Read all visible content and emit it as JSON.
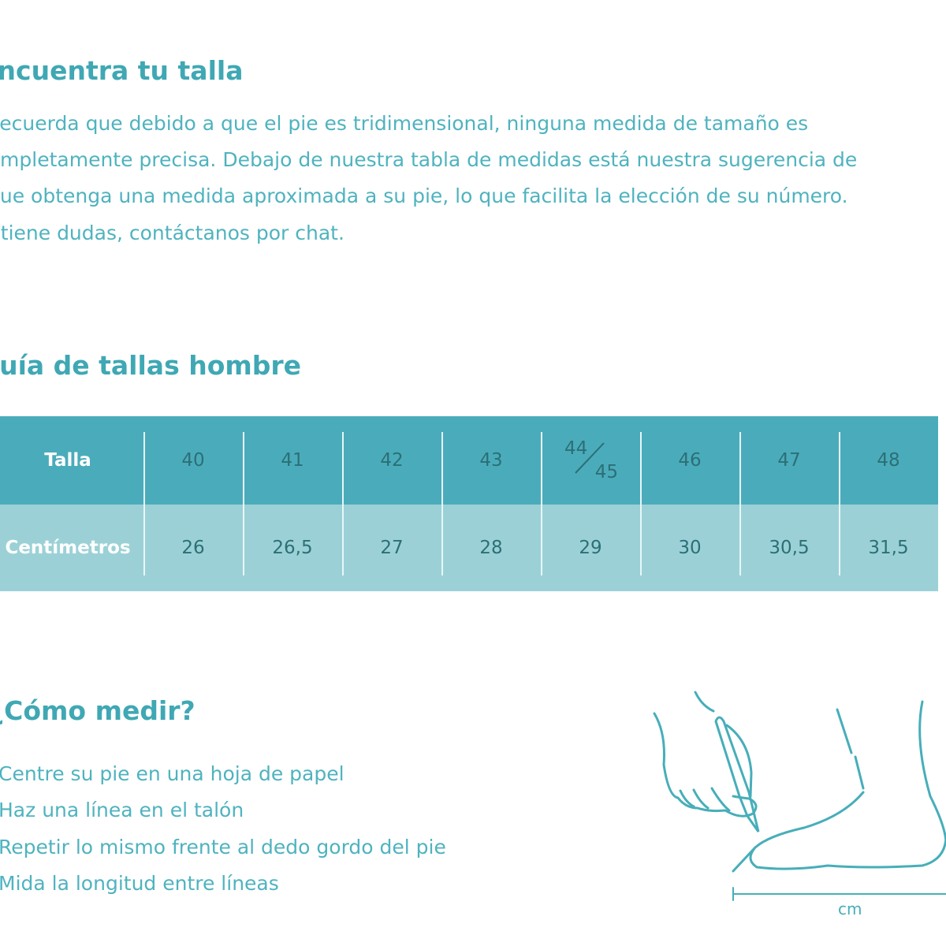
{
  "intro": {
    "title": "Encuentra tu talla",
    "lines": [
      "Recuerda que debido a que el pie es tridimensional, ninguna medida de tamaño es",
      "completamente precisa. Debajo de nuestra tabla de medidas está nuestra sugerencia de",
      "que obtenga una medida aproximada a su pie, lo que facilita la elección de su número.",
      "Si tiene dudas, contáctanos por chat."
    ]
  },
  "guide": {
    "title": "Guía de tallas hombre",
    "row_labels": [
      "Talla",
      "Centímetros"
    ],
    "sizes": [
      "40",
      "41",
      "42",
      "43",
      "44/45",
      "46",
      "47",
      "48"
    ],
    "size_split": [
      "44",
      "45"
    ],
    "cm": [
      "26",
      "26,5",
      "27",
      "28",
      "29",
      "30",
      "30,5",
      "31,5"
    ]
  },
  "measure": {
    "title": "¿Cómo medir?",
    "steps": [
      "Centre su pie en una hoja de papel",
      "Haz una línea en el talón",
      "Repetir lo mismo frente al dedo gordo del pie",
      "Mida la longitud entre líneas"
    ],
    "unit_label": "cm"
  },
  "colors": {
    "heading": "#3fa8b4",
    "text": "#4fb3bf",
    "header_row": "#4aacbb",
    "data_row": "#9bd1d6",
    "cell_text": "#2c6f77"
  }
}
